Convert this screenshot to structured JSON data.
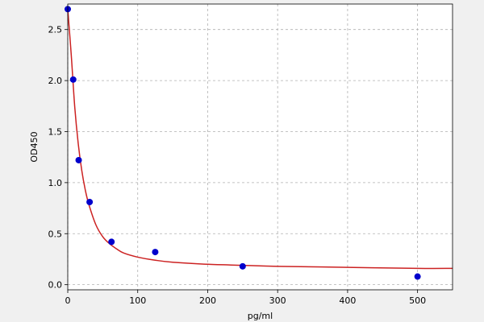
{
  "chart_data": {
    "type": "scatter",
    "xlabel": "pg/ml",
    "ylabel": "OD450",
    "xlim": [
      0,
      550
    ],
    "ylim": [
      -0.05,
      2.75
    ],
    "xticks": [
      0,
      100,
      200,
      300,
      400,
      500
    ],
    "yticks": [
      0.0,
      0.5,
      1.0,
      1.5,
      2.0,
      2.5
    ],
    "xtick_labels": [
      "0",
      "100",
      "200",
      "300",
      "400",
      "500"
    ],
    "ytick_labels": [
      "0.0",
      "0.5",
      "1.0",
      "1.5",
      "2.0",
      "2.5"
    ],
    "grid": true,
    "series": [
      {
        "kind": "points",
        "color": "#0000cc",
        "x": [
          0,
          7.8,
          15.6,
          31.25,
          62.5,
          125,
          250,
          500
        ],
        "y": [
          2.7,
          2.01,
          1.22,
          0.81,
          0.42,
          0.32,
          0.18,
          0.08
        ]
      },
      {
        "kind": "fit-curve",
        "color": "#cc2222",
        "x": [
          0,
          5,
          10,
          15,
          20,
          25,
          30,
          40,
          50,
          60,
          70,
          80,
          100,
          125,
          150,
          200,
          250,
          300,
          400,
          500,
          550
        ],
        "y": [
          2.7,
          2.25,
          1.74,
          1.38,
          1.12,
          0.93,
          0.79,
          0.59,
          0.47,
          0.4,
          0.35,
          0.31,
          0.27,
          0.24,
          0.22,
          0.2,
          0.19,
          0.18,
          0.17,
          0.16,
          0.16
        ]
      }
    ]
  }
}
